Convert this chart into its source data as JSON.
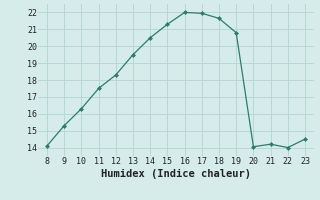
{
  "x": [
    8,
    9,
    10,
    11,
    12,
    13,
    14,
    15,
    16,
    17,
    18,
    19,
    20,
    21,
    22,
    23
  ],
  "y": [
    14.1,
    15.3,
    16.3,
    17.5,
    18.3,
    19.5,
    20.5,
    21.3,
    22.0,
    21.95,
    21.65,
    20.8,
    14.05,
    14.2,
    14.0,
    14.5
  ],
  "line_color": "#2f7b6e",
  "marker_color": "#2f7b6e",
  "bg_color": "#d5ecea",
  "grid_color": "#b8d8d5",
  "xlabel": "Humidex (Indice chaleur)",
  "xlim": [
    7.5,
    23.5
  ],
  "ylim": [
    13.5,
    22.5
  ],
  "xticks": [
    8,
    9,
    10,
    11,
    12,
    13,
    14,
    15,
    16,
    17,
    18,
    19,
    20,
    21,
    22,
    23
  ],
  "yticks": [
    14,
    15,
    16,
    17,
    18,
    19,
    20,
    21,
    22
  ],
  "xlabel_fontsize": 7.5
}
